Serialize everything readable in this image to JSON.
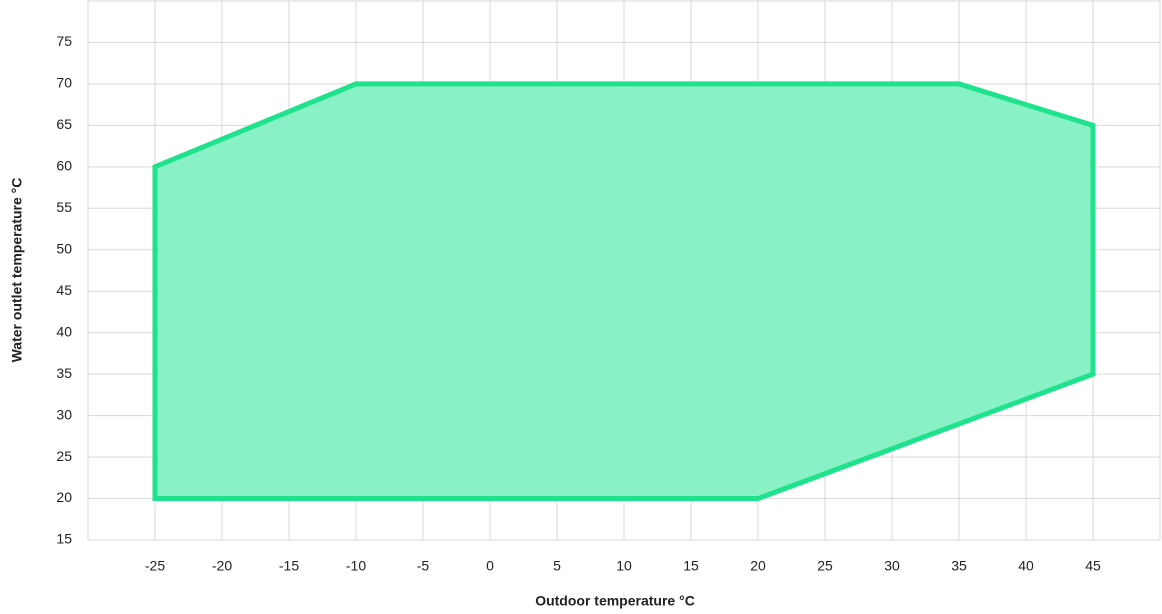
{
  "chart_data": {
    "type": "area",
    "x_label": "Outdoor temperature °C",
    "y_label": "Water outlet temperature °C",
    "series": [
      {
        "color": "#1ee38c",
        "fill": "#88f1c6",
        "x": [
          -25,
          -25,
          -10,
          35,
          45,
          45,
          20
        ],
        "values": [
          20,
          60,
          70,
          70,
          65,
          35,
          20
        ]
      }
    ],
    "xlim": [
      -30,
      50
    ],
    "xticks": [
      -25,
      -20,
      -15,
      -10,
      -5,
      0,
      5,
      10,
      15,
      20,
      25,
      30,
      35,
      40,
      45
    ],
    "ylim": [
      15,
      80
    ],
    "yticks": [
      15,
      20,
      25,
      30,
      35,
      40,
      45,
      50,
      55,
      60,
      65,
      70,
      75
    ],
    "grid": true
  }
}
